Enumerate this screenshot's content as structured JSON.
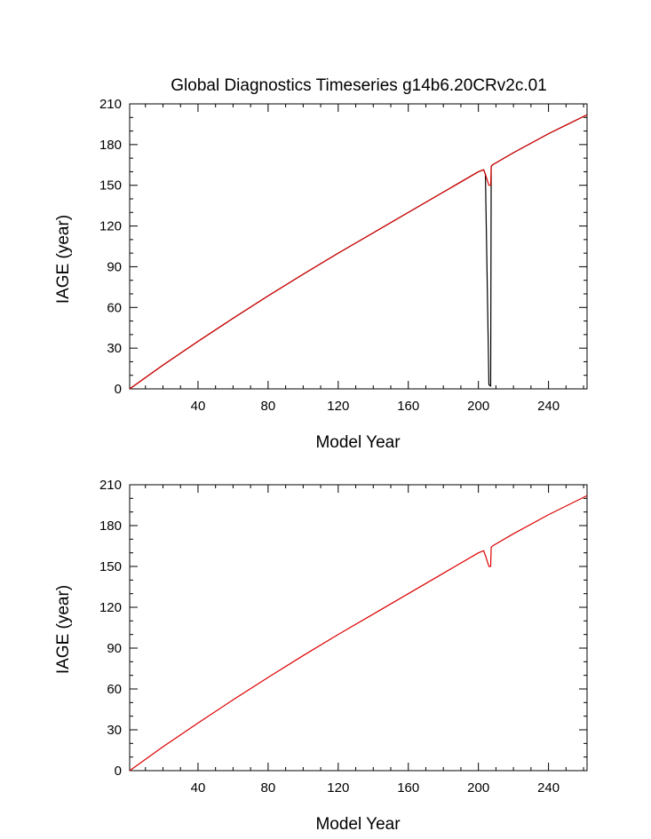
{
  "title": "Global Diagnostics Timeseries g14b6.20CRv2c.01",
  "chart_data": [
    {
      "type": "line",
      "xlabel": "Model Year",
      "ylabel": "IAGE (year)",
      "xlim": [
        1,
        262
      ],
      "ylim": [
        0,
        210
      ],
      "x_ticks": [
        40,
        80,
        120,
        160,
        200,
        240
      ],
      "y_ticks": [
        0,
        30,
        60,
        90,
        120,
        150,
        180,
        210
      ],
      "grid": false,
      "series": [
        {
          "color": "#000000",
          "x": [
            1,
            20,
            40,
            60,
            80,
            100,
            120,
            140,
            160,
            180,
            200,
            203,
            204,
            206,
            207,
            207.3,
            208,
            220,
            240,
            262
          ],
          "y": [
            0,
            17.5,
            35,
            52,
            68.5,
            84.5,
            100,
            115,
            130,
            145,
            160,
            161.5,
            158,
            3,
            2,
            164,
            165,
            174,
            188,
            202
          ]
        },
        {
          "color": "#dd0000",
          "x": [
            1,
            20,
            40,
            60,
            80,
            100,
            120,
            140,
            160,
            180,
            200,
            203,
            204,
            206,
            207,
            207.3,
            208,
            220,
            240,
            262
          ],
          "y": [
            0,
            17.5,
            35,
            52,
            68.5,
            84.5,
            100,
            115,
            130,
            145,
            160,
            161.5,
            158,
            150,
            150,
            164,
            165,
            174,
            188,
            202
          ]
        }
      ]
    },
    {
      "type": "line",
      "xlabel": "Model Year",
      "ylabel": "IAGE (year)",
      "xlim": [
        1,
        262
      ],
      "ylim": [
        0,
        210
      ],
      "x_ticks": [
        40,
        80,
        120,
        160,
        200,
        240
      ],
      "y_ticks": [
        0,
        30,
        60,
        90,
        120,
        150,
        180,
        210
      ],
      "grid": false,
      "series": [
        {
          "color": "#dd0000",
          "x": [
            1,
            20,
            40,
            60,
            80,
            100,
            120,
            140,
            160,
            180,
            200,
            203,
            204,
            206,
            207,
            207.3,
            208,
            220,
            240,
            262
          ],
          "y": [
            0,
            17.5,
            35,
            52,
            68.5,
            84.5,
            100,
            115,
            130,
            145,
            160,
            161.5,
            158,
            150,
            150,
            164,
            165,
            174,
            188,
            202
          ]
        }
      ]
    }
  ]
}
